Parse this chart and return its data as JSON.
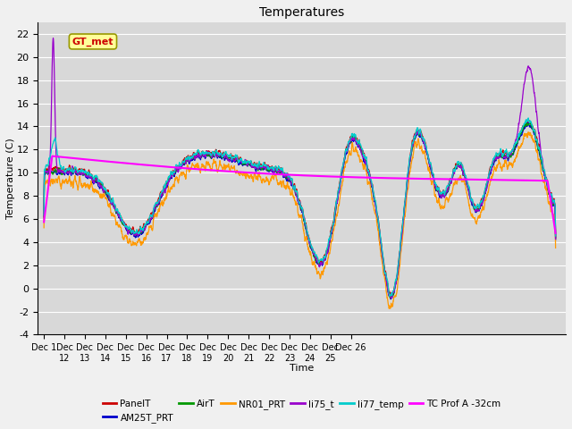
{
  "title": "Temperatures",
  "xlabel": "Time",
  "ylabel": "Temperature (C)",
  "ylim": [
    -4,
    23
  ],
  "series_colors": {
    "PanelT": "#cc0000",
    "AM25T_PRT": "#0000cc",
    "AirT": "#009900",
    "NR01_PRT": "#ff9900",
    "li75_t": "#9900cc",
    "li77_temp": "#00cccc",
    "TC Prof A -32cm": "#ff00ff"
  },
  "annotation_text": "GT_met",
  "annotation_color": "#cc0000",
  "annotation_bg": "#ffff99",
  "fig_bg": "#f0f0f0",
  "plot_bg": "#d8d8d8",
  "grid_color": "#ffffff",
  "x_tick_labels": [
    "Dec 1",
    "Dec\n12",
    "Dec\n13",
    "Dec\n14",
    "Dec\n15",
    "Dec\n16",
    "Dec\n17",
    "Dec\n18",
    "Dec\n19",
    "Dec\n20",
    "Dec\n21",
    "Dec\n22",
    "Dec\n23",
    "Dec\n24",
    "Dec\n25",
    "Dec 26"
  ],
  "yticks": [
    -4,
    -2,
    0,
    2,
    4,
    6,
    8,
    10,
    12,
    14,
    16,
    18,
    20,
    22
  ]
}
